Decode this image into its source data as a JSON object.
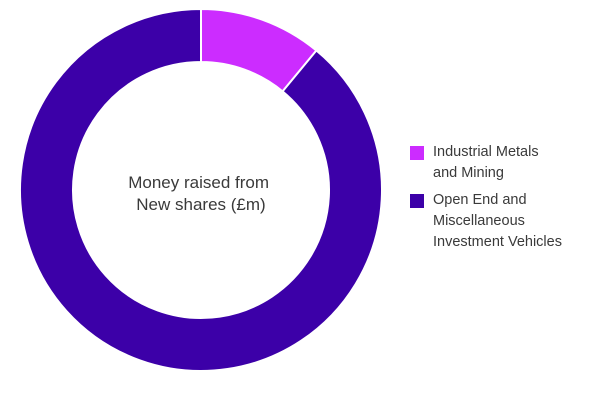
{
  "chart_data": {
    "type": "pie",
    "variant": "donut",
    "center_label": [
      "Money raised from",
      "New shares (£m)"
    ],
    "slices": [
      {
        "label": "Industrial Metals and Mining",
        "value": 11,
        "color": "#cc2cff"
      },
      {
        "label": "Open End and Miscellaneous Investment Vehicles",
        "value": 89,
        "color": "#3c00a8"
      }
    ],
    "legend": {
      "placement": "right",
      "items": [
        {
          "lines": [
            "Industrial Metals",
            "and Mining"
          ],
          "color": "#cc2cff"
        },
        {
          "lines": [
            "Open End and",
            "Miscellaneous",
            "Investment Vehicles"
          ],
          "color": "#3c00a8"
        }
      ]
    }
  }
}
